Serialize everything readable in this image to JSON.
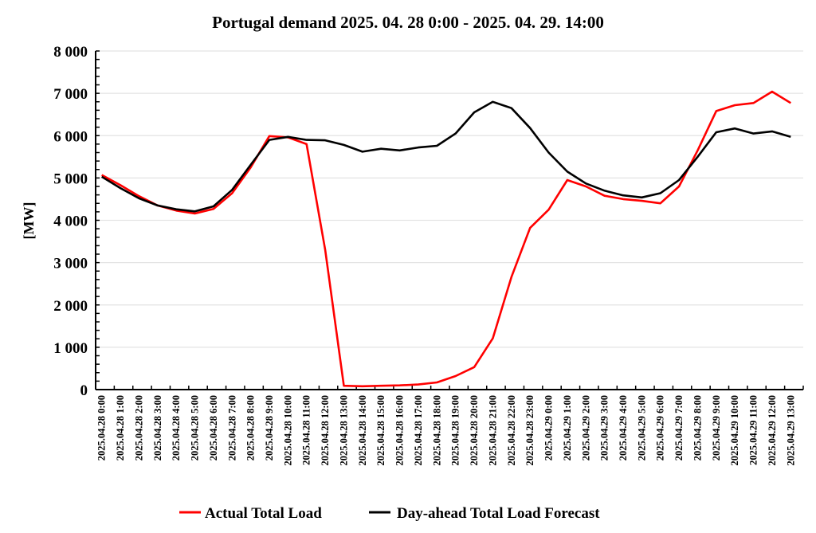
{
  "chart_data": {
    "type": "line",
    "title": "Portugal demand 2025. 04. 28 0:00 - 2025. 04. 29. 14:00",
    "xlabel": "",
    "ylabel": "[MW]",
    "ylim": [
      0,
      8000
    ],
    "yticks": [
      0,
      1000,
      2000,
      3000,
      4000,
      5000,
      6000,
      7000,
      8000
    ],
    "ytick_labels": [
      "0",
      "1 000",
      "2 000",
      "3 000",
      "4 000",
      "5 000",
      "6 000",
      "7 000",
      "8 000"
    ],
    "grid": "horizontal",
    "legend_position": "bottom",
    "categories": [
      "2025.04.28 0:00",
      "2025.04.28 1:00",
      "2025.04.28 2:00",
      "2025.04.28 3:00",
      "2025.04.28 4:00",
      "2025.04.28 5:00",
      "2025.04.28 6:00",
      "2025.04.28 7:00",
      "2025.04.28 8:00",
      "2025.04.28 9:00",
      "2025.04.28 10:00",
      "2025.04.28 11:00",
      "2025.04.28 12:00",
      "2025.04.28 13:00",
      "2025.04.28 14:00",
      "2025.04.28 15:00",
      "2025.04.28 16:00",
      "2025.04.28 17:00",
      "2025.04.28 18:00",
      "2025.04.28 19:00",
      "2025.04.28 20:00",
      "2025.04.28 21:00",
      "2025.04.28 22:00",
      "2025.04.28 23:00",
      "2025.04.29 0:00",
      "2025.04.29 1:00",
      "2025.04.29 2:00",
      "2025.04.29 3:00",
      "2025.04.29 4:00",
      "2025.04.29 5:00",
      "2025.04.29 6:00",
      "2025.04.29 7:00",
      "2025.04.29 8:00",
      "2025.04.29 9:00",
      "2025.04.29 10:00",
      "2025.04.29 11:00",
      "2025.04.29 12:00",
      "2025.04.29 13:00"
    ],
    "series": [
      {
        "name": "Actual Total Load",
        "color": "#ff0000",
        "values": [
          5070,
          4830,
          4570,
          4350,
          4230,
          4160,
          4270,
          4640,
          5250,
          5990,
          5960,
          5800,
          3300,
          90,
          80,
          90,
          100,
          120,
          170,
          320,
          530,
          1210,
          2660,
          3820,
          4250,
          4950,
          4800,
          4580,
          4500,
          4460,
          4400,
          4800,
          5650,
          6580,
          6720,
          6770,
          7040,
          6770
        ]
      },
      {
        "name": "Day-ahead Total Load Forecast",
        "color": "#000000",
        "values": [
          5030,
          4760,
          4520,
          4350,
          4260,
          4210,
          4330,
          4720,
          5310,
          5900,
          5970,
          5900,
          5890,
          5780,
          5620,
          5690,
          5650,
          5720,
          5760,
          6050,
          6550,
          6800,
          6650,
          6180,
          5600,
          5150,
          4870,
          4700,
          4590,
          4540,
          4640,
          4950,
          5500,
          6080,
          6170,
          6050,
          6100,
          5970
        ]
      }
    ]
  }
}
